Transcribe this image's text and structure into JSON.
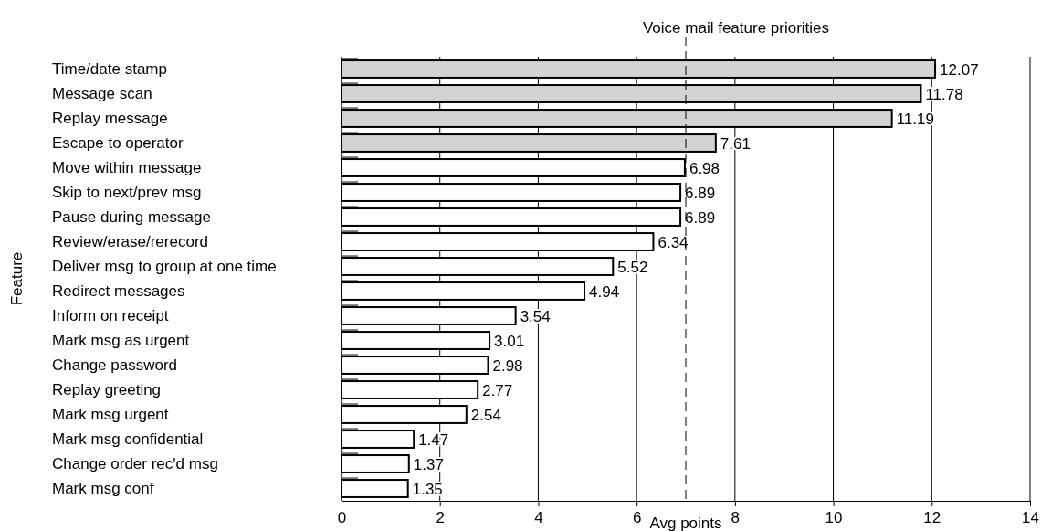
{
  "chart_data": {
    "type": "bar",
    "orientation": "horizontal",
    "title": "Voice mail feature priorities",
    "xlabel": "Avg points",
    "ylabel": "Feature",
    "categories": [
      "Time/date stamp",
      "Message scan",
      "Replay message",
      "Escape to operator",
      "Move within message",
      "Skip to next/prev msg",
      "Pause during message",
      "Review/erase/rerecord",
      "Deliver msg to group at one time",
      "Redirect messages",
      "Inform on receipt",
      "Mark msg as urgent",
      "Change password",
      "Replay greeting",
      "Mark msg urgent",
      "Mark msg confidential",
      "Change order rec'd msg",
      "Mark msg conf"
    ],
    "values": [
      12.07,
      11.78,
      11.19,
      7.61,
      6.98,
      6.89,
      6.89,
      6.34,
      5.52,
      4.94,
      3.54,
      3.01,
      2.98,
      2.77,
      2.54,
      1.47,
      1.37,
      1.35
    ],
    "colors": [
      "#d3d3d3",
      "#d3d3d3",
      "#d3d3d3",
      "#d3d3d3",
      "#ffffff",
      "#ffffff",
      "#ffffff",
      "#ffffff",
      "#ffffff",
      "#ffffff",
      "#ffffff",
      "#ffffff",
      "#ffffff",
      "#ffffff",
      "#ffffff",
      "#ffffff",
      "#ffffff",
      "#ffffff"
    ],
    "xlim": [
      0,
      14
    ],
    "xticks": [
      0,
      2,
      4,
      6,
      8,
      10,
      12,
      14
    ],
    "grid": "x",
    "data_labels": true,
    "ref_lines": [
      {
        "axis": "x",
        "value": 7,
        "line_style": "dashed",
        "color": "#000000"
      }
    ]
  }
}
